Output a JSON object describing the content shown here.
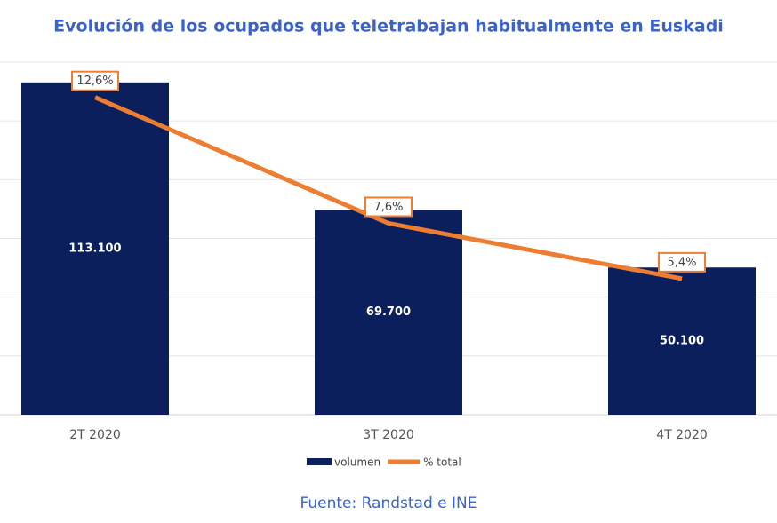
{
  "chart_data": {
    "type": "combo",
    "title": "Evolución de los ocupados que teletrabajan habitualmente en Euskadi",
    "source": "Fuente: Randstad e INE",
    "categories": [
      "2T 2020",
      "3T 2020",
      "4T 2020"
    ],
    "series": [
      {
        "name": "volumen",
        "type": "bar",
        "color": "#0b1f5c",
        "values": [
          113100,
          69700,
          50100
        ],
        "value_labels": [
          "113.100",
          "69.700",
          "50.100"
        ]
      },
      {
        "name": "% total",
        "type": "line",
        "axis": "y2",
        "color": "#ed7d31",
        "values": [
          12.6,
          7.6,
          5.4
        ],
        "value_labels": [
          "12,6%",
          "7,6%",
          "5,4%"
        ]
      }
    ],
    "ylim": [
      0,
      120000
    ],
    "yticks": [
      0,
      20000,
      40000,
      60000,
      80000,
      100000,
      120000
    ],
    "y2lim": [
      0,
      14
    ],
    "grid": true,
    "legend": "bottom"
  }
}
